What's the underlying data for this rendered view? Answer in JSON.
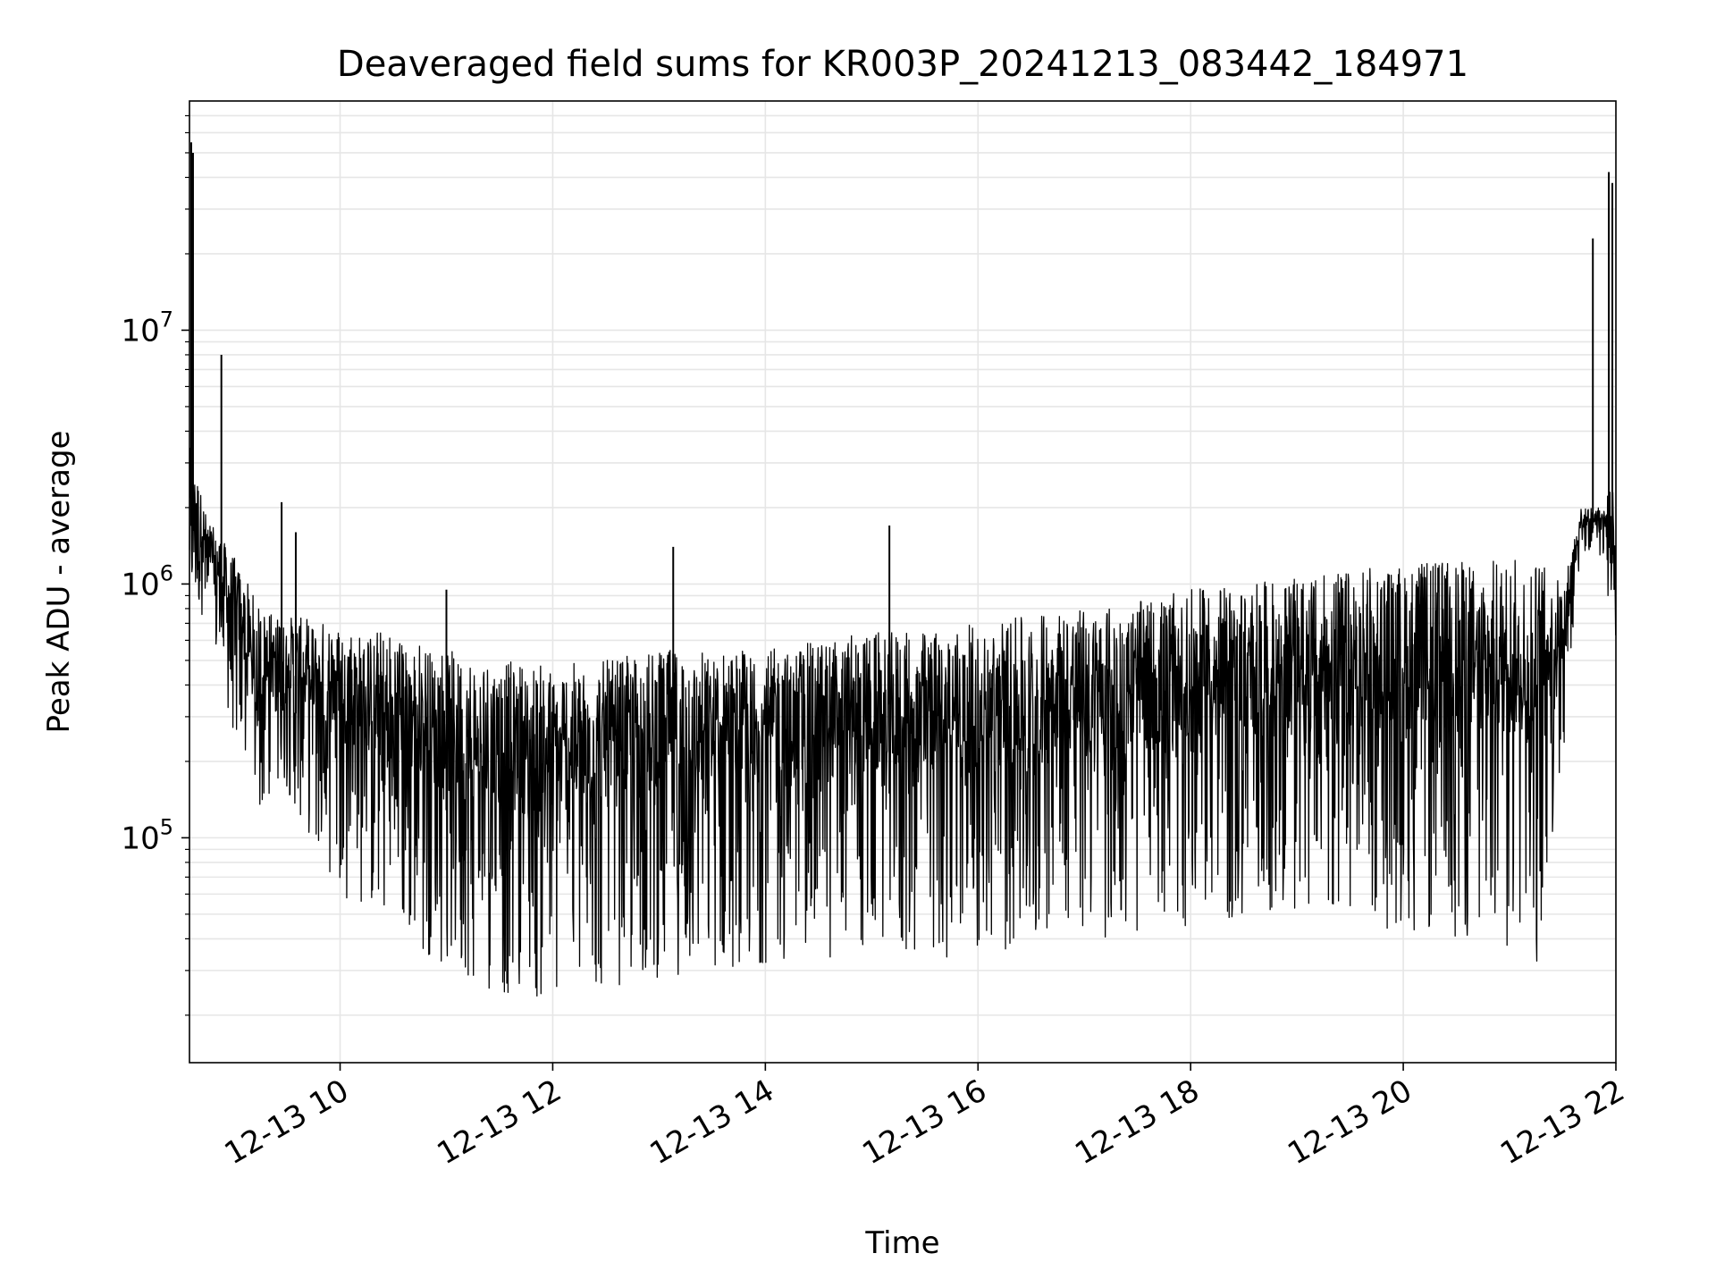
{
  "chart_data": {
    "type": "line",
    "title": "Deaveraged field sums for KR003P_20241213_083442_184971",
    "xlabel": "Time",
    "ylabel": "Peak ADU - average",
    "x_scale": "time",
    "y_scale": "log",
    "grid": true,
    "xlim": [
      "2024-12-13 08:35",
      "2024-12-13 22:00"
    ],
    "ylim": [
      13000,
      80000000
    ],
    "x_ticks": [
      {
        "value": "2024-12-13 10:00",
        "label": "12-13 10"
      },
      {
        "value": "2024-12-13 12:00",
        "label": "12-13 12"
      },
      {
        "value": "2024-12-13 14:00",
        "label": "12-13 14"
      },
      {
        "value": "2024-12-13 16:00",
        "label": "12-13 16"
      },
      {
        "value": "2024-12-13 18:00",
        "label": "12-13 18"
      },
      {
        "value": "2024-12-13 20:00",
        "label": "12-13 20"
      },
      {
        "value": "2024-12-13 22:00",
        "label": "12-13 22"
      }
    ],
    "y_ticks": [
      {
        "value": 100000,
        "base": "10",
        "exp": "5"
      },
      {
        "value": 1000000,
        "base": "10",
        "exp": "6"
      },
      {
        "value": 10000000,
        "base": "10",
        "exp": "7"
      }
    ],
    "line_color": "#000000",
    "grid_color": "#e6e6e6",
    "series": [
      {
        "envelope": [
          {
            "t": "2024-12-13 08:35",
            "upper": 3500000,
            "lower": 900000
          },
          {
            "t": "2024-12-13 08:45",
            "upper": 1800000,
            "lower": 700000
          },
          {
            "t": "2024-12-13 09:00",
            "upper": 1300000,
            "lower": 250000
          },
          {
            "t": "2024-12-13 09:15",
            "upper": 800000,
            "lower": 120000
          },
          {
            "t": "2024-12-13 09:30",
            "upper": 750000,
            "lower": 150000
          },
          {
            "t": "2024-12-13 10:00",
            "upper": 700000,
            "lower": 60000
          },
          {
            "t": "2024-12-13 10:30",
            "upper": 650000,
            "lower": 45000
          },
          {
            "t": "2024-12-13 11:00",
            "upper": 550000,
            "lower": 30000
          },
          {
            "t": "2024-12-13 11:30",
            "upper": 500000,
            "lower": 24000
          },
          {
            "t": "2024-12-13 12:00",
            "upper": 480000,
            "lower": 22000
          },
          {
            "t": "2024-12-13 12:30",
            "upper": 500000,
            "lower": 25000
          },
          {
            "t": "2024-12-13 13:00",
            "upper": 550000,
            "lower": 28000
          },
          {
            "t": "2024-12-13 13:30",
            "upper": 550000,
            "lower": 30000
          },
          {
            "t": "2024-12-13 14:00",
            "upper": 550000,
            "lower": 32000
          },
          {
            "t": "2024-12-13 14:30",
            "upper": 600000,
            "lower": 33000
          },
          {
            "t": "2024-12-13 15:00",
            "upper": 650000,
            "lower": 35000
          },
          {
            "t": "2024-12-13 15:30",
            "upper": 650000,
            "lower": 33000
          },
          {
            "t": "2024-12-13 16:00",
            "upper": 700000,
            "lower": 35000
          },
          {
            "t": "2024-12-13 16:30",
            "upper": 750000,
            "lower": 35000
          },
          {
            "t": "2024-12-13 16:45",
            "upper": 800000,
            "lower": 50000
          },
          {
            "t": "2024-12-13 17:00",
            "upper": 800000,
            "lower": 40000
          },
          {
            "t": "2024-12-13 17:30",
            "upper": 850000,
            "lower": 40000
          },
          {
            "t": "2024-12-13 18:00",
            "upper": 950000,
            "lower": 45000
          },
          {
            "t": "2024-12-13 18:30",
            "upper": 1000000,
            "lower": 45000
          },
          {
            "t": "2024-12-13 19:00",
            "upper": 1050000,
            "lower": 45000
          },
          {
            "t": "2024-12-13 19:30",
            "upper": 1150000,
            "lower": 45000
          },
          {
            "t": "2024-12-13 20:00",
            "upper": 1200000,
            "lower": 42000
          },
          {
            "t": "2024-12-13 20:30",
            "upper": 1250000,
            "lower": 40000
          },
          {
            "t": "2024-12-13 21:00",
            "upper": 1250000,
            "lower": 35000
          },
          {
            "t": "2024-12-13 21:15",
            "upper": 1300000,
            "lower": 30000
          },
          {
            "t": "2024-12-13 21:30",
            "upper": 1000000,
            "lower": 200000
          },
          {
            "t": "2024-12-13 21:40",
            "upper": 2000000,
            "lower": 1300000
          },
          {
            "t": "2024-12-13 21:50",
            "upper": 2000000,
            "lower": 1400000
          },
          {
            "t": "2024-12-13 22:00",
            "upper": 2500000,
            "lower": 600000
          }
        ],
        "spikes": [
          {
            "t": "2024-12-13 08:36",
            "value": 55000000
          },
          {
            "t": "2024-12-13 08:37",
            "value": 50000000
          },
          {
            "t": "2024-12-13 08:53",
            "value": 8000000
          },
          {
            "t": "2024-12-13 09:27",
            "value": 2100000
          },
          {
            "t": "2024-12-13 09:35",
            "value": 1600000
          },
          {
            "t": "2024-12-13 11:00",
            "value": 950000
          },
          {
            "t": "2024-12-13 13:08",
            "value": 1400000
          },
          {
            "t": "2024-12-13 15:10",
            "value": 1700000
          },
          {
            "t": "2024-12-13 21:47",
            "value": 23000000
          },
          {
            "t": "2024-12-13 21:56",
            "value": 42000000
          },
          {
            "t": "2024-12-13 21:58",
            "value": 38000000
          }
        ]
      }
    ]
  }
}
